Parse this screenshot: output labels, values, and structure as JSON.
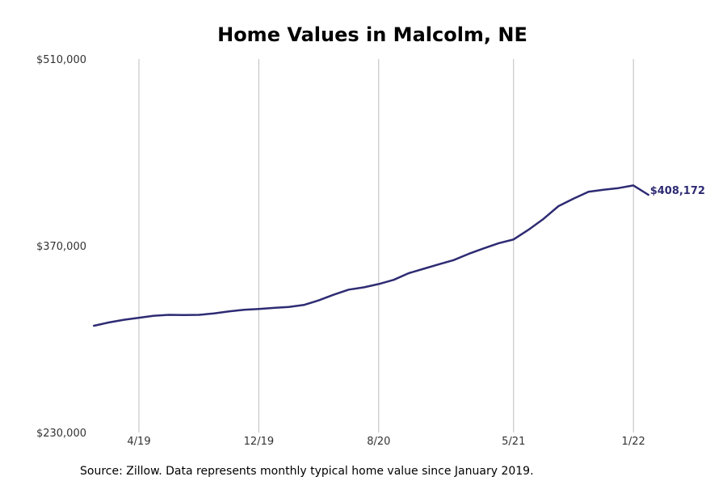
{
  "chart_data": {
    "type": "line",
    "title": "Home Values in Malcolm, NE",
    "xlabel": "",
    "ylabel": "",
    "ylim": [
      230000,
      510000
    ],
    "yticks": [
      230000,
      370000,
      510000
    ],
    "ytick_labels": [
      "$230,000",
      "$370,000",
      "$510,000"
    ],
    "xticks": [
      {
        "month": "2019-04",
        "label": "4/19"
      },
      {
        "month": "2019-12",
        "label": "12/19"
      },
      {
        "month": "2020-08",
        "label": "8/20"
      },
      {
        "month": "2021-05",
        "label": "5/21"
      },
      {
        "month": "2022-01",
        "label": "1/22"
      }
    ],
    "grid": "vertical",
    "line_color": "#2e2b73",
    "series": [
      {
        "name": "",
        "x": [
          "2019-01",
          "2019-02",
          "2019-03",
          "2019-04",
          "2019-05",
          "2019-06",
          "2019-07",
          "2019-08",
          "2019-09",
          "2019-10",
          "2019-11",
          "2019-12",
          "2020-01",
          "2020-02",
          "2020-03",
          "2020-04",
          "2020-05",
          "2020-06",
          "2020-07",
          "2020-08",
          "2020-09",
          "2020-10",
          "2020-11",
          "2020-12",
          "2021-01",
          "2021-02",
          "2021-03",
          "2021-04",
          "2021-05",
          "2021-06",
          "2021-07",
          "2021-08",
          "2021-09",
          "2021-10",
          "2021-11",
          "2021-12",
          "2022-01",
          "2022-02"
        ],
        "values": [
          310000,
          312500,
          314500,
          316000,
          317500,
          318200,
          318000,
          318200,
          319200,
          320800,
          322000,
          322600,
          323400,
          324100,
          325600,
          329000,
          333300,
          337100,
          338800,
          341300,
          344400,
          349400,
          352700,
          356000,
          359200,
          363900,
          368000,
          371900,
          374700,
          382000,
          390200,
          399700,
          405300,
          410500,
          412000,
          413200,
          415200,
          408172
        ]
      }
    ],
    "end_label": "$408,172",
    "source": "Source: Zillow. Data represents monthly typical home value since January 2019."
  }
}
